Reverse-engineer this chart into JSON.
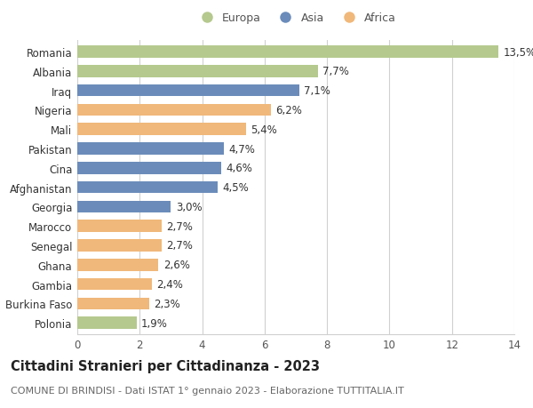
{
  "countries": [
    "Romania",
    "Albania",
    "Iraq",
    "Nigeria",
    "Mali",
    "Pakistan",
    "Cina",
    "Afghanistan",
    "Georgia",
    "Marocco",
    "Senegal",
    "Ghana",
    "Gambia",
    "Burkina Faso",
    "Polonia"
  ],
  "values": [
    13.5,
    7.7,
    7.1,
    6.2,
    5.4,
    4.7,
    4.6,
    4.5,
    3.0,
    2.7,
    2.7,
    2.6,
    2.4,
    2.3,
    1.9
  ],
  "labels": [
    "13,5%",
    "7,7%",
    "7,1%",
    "6,2%",
    "5,4%",
    "4,7%",
    "4,6%",
    "4,5%",
    "3,0%",
    "2,7%",
    "2,7%",
    "2,6%",
    "2,4%",
    "2,3%",
    "1,9%"
  ],
  "continents": [
    "Europa",
    "Europa",
    "Asia",
    "Africa",
    "Africa",
    "Asia",
    "Asia",
    "Asia",
    "Asia",
    "Africa",
    "Africa",
    "Africa",
    "Africa",
    "Africa",
    "Europa"
  ],
  "colors": {
    "Europa": "#b5c98e",
    "Asia": "#6b8cba",
    "Africa": "#f0b87a"
  },
  "legend_order": [
    "Europa",
    "Asia",
    "Africa"
  ],
  "xlim": [
    0,
    14
  ],
  "xticks": [
    0,
    2,
    4,
    6,
    8,
    10,
    12,
    14
  ],
  "title": "Cittadini Stranieri per Cittadinanza - 2023",
  "subtitle": "COMUNE DI BRINDISI - Dati ISTAT 1° gennaio 2023 - Elaborazione TUTTITALIA.IT",
  "title_fontsize": 10.5,
  "subtitle_fontsize": 8,
  "label_fontsize": 8.5,
  "tick_fontsize": 8.5,
  "legend_fontsize": 9,
  "bar_height": 0.62,
  "background_color": "#ffffff",
  "grid_color": "#d0d0d0"
}
